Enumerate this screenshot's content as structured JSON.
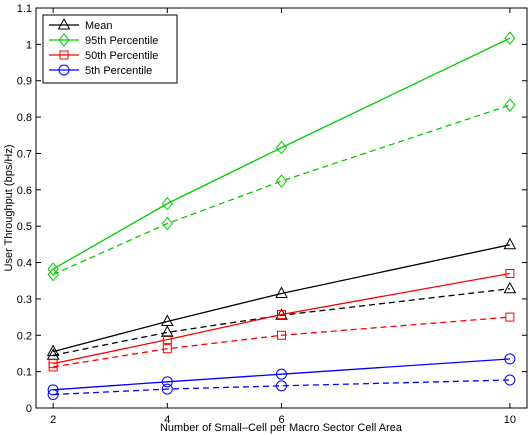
{
  "chart_data": {
    "type": "line",
    "xlabel": "Number of Small–Cell per Macro Sector Cell Area",
    "ylabel": "User Throughput (bps/Hz)",
    "xlim": [
      1.7,
      10.3
    ],
    "ylim": [
      0,
      1.1
    ],
    "xticks": [
      2,
      4,
      6,
      10
    ],
    "yticks": [
      0,
      0.1,
      0.2,
      0.3,
      0.4,
      0.5,
      0.6,
      0.7,
      0.8,
      0.9,
      1,
      1.1
    ],
    "x": [
      2,
      4,
      6,
      10
    ],
    "grid": false,
    "legend_position": "top-left",
    "series": [
      {
        "name": "Mean",
        "color": "#000000",
        "marker": "triangle",
        "dash": false,
        "values": [
          0.155,
          0.238,
          0.315,
          0.449
        ]
      },
      {
        "name": "",
        "color": "#000000",
        "marker": "triangle",
        "dash": true,
        "values": [
          0.145,
          0.208,
          0.255,
          0.328
        ]
      },
      {
        "name": "95th Percentile",
        "color": "#00cc00",
        "marker": "diamond",
        "dash": false,
        "values": [
          0.382,
          0.562,
          0.716,
          1.017
        ]
      },
      {
        "name": "",
        "color": "#00cc00",
        "marker": "diamond",
        "dash": true,
        "values": [
          0.367,
          0.507,
          0.624,
          0.833
        ]
      },
      {
        "name": "50th Percentile",
        "color": "#ff0000",
        "marker": "square",
        "dash": false,
        "values": [
          0.122,
          0.188,
          0.257,
          0.37
        ]
      },
      {
        "name": "",
        "color": "#ff0000",
        "marker": "square",
        "dash": true,
        "values": [
          0.113,
          0.163,
          0.2,
          0.25
        ]
      },
      {
        "name": "5th Percentile",
        "color": "#0000ff",
        "marker": "circle",
        "dash": false,
        "values": [
          0.05,
          0.072,
          0.093,
          0.135
        ]
      },
      {
        "name": "",
        "color": "#0000ff",
        "marker": "circle",
        "dash": true,
        "values": [
          0.037,
          0.052,
          0.061,
          0.077
        ]
      }
    ]
  }
}
